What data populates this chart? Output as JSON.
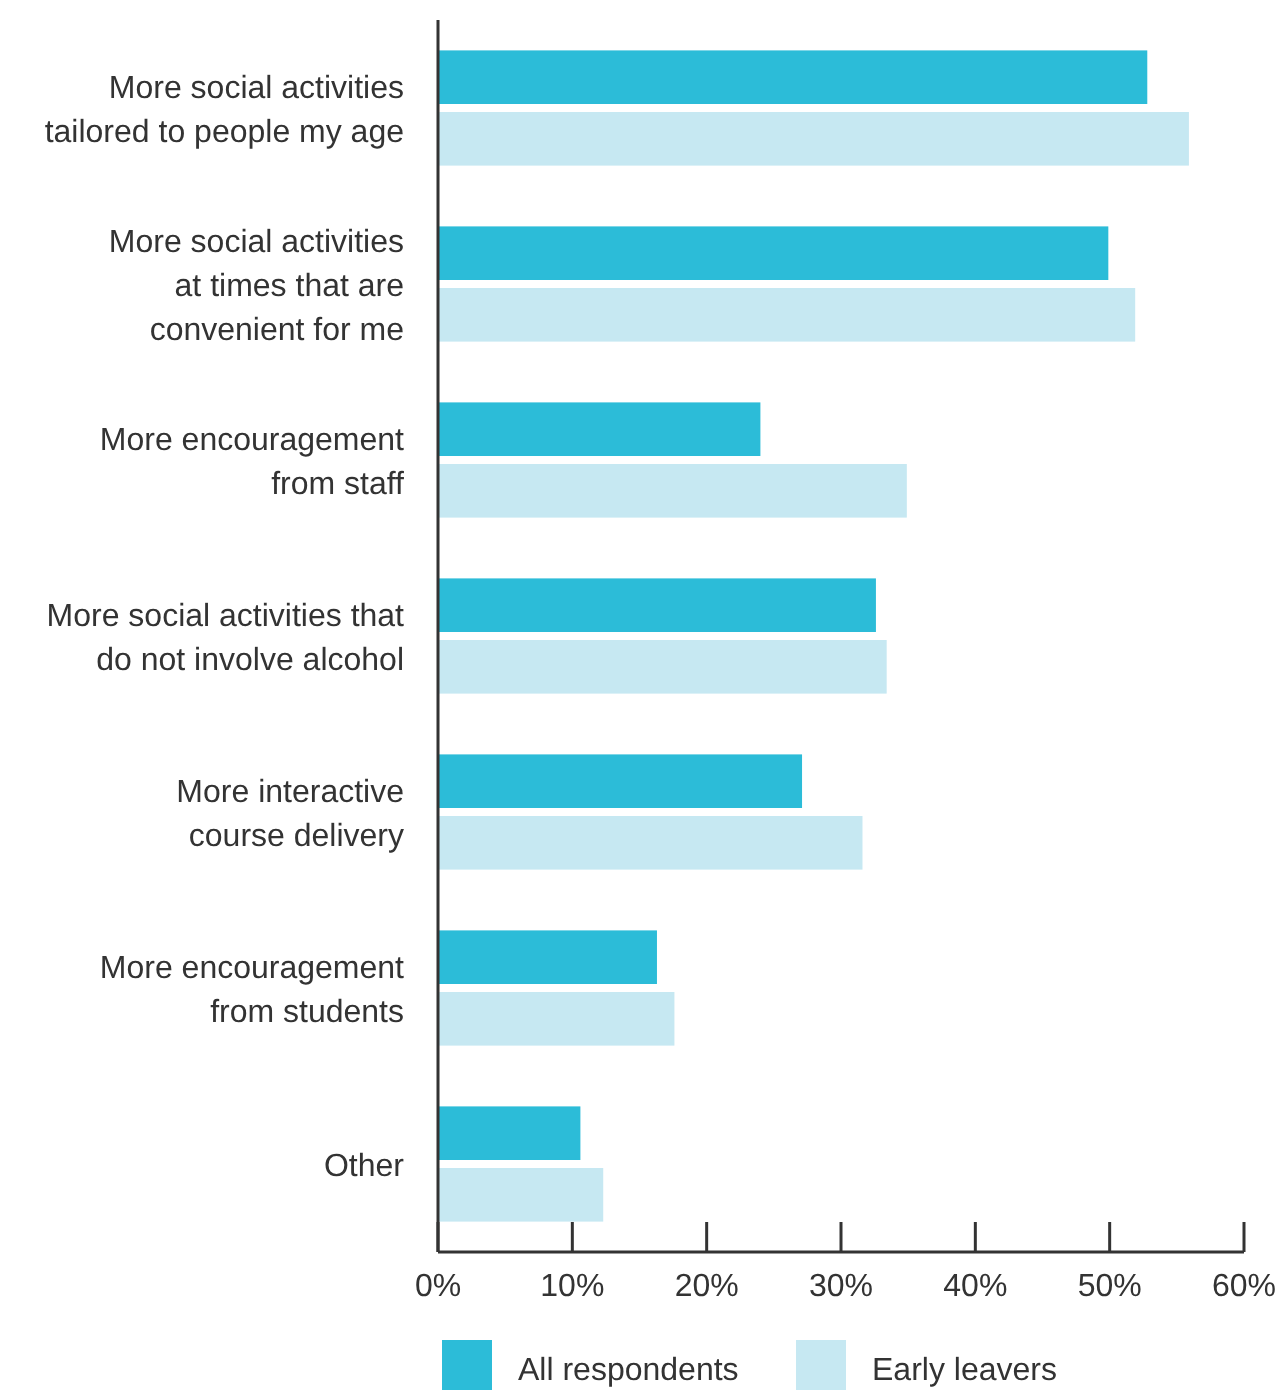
{
  "chart_data": {
    "type": "bar",
    "orientation": "horizontal",
    "categories": [
      "More social activities\ntailored to people my age",
      "More social activities\nat times that are\nconvenient for me",
      "More encouragement\nfrom staff",
      "More social activities that\ndo not involve alcohol",
      "More interactive\ncourse delivery",
      "More encouragement\nfrom students",
      "Other"
    ],
    "series": [
      {
        "name": "All respondents",
        "color": "#2cbcd8",
        "values": [
          52.8,
          49.9,
          24.0,
          32.6,
          27.1,
          16.3,
          10.6
        ]
      },
      {
        "name": "Early leavers",
        "color": "#c6e8f2",
        "values": [
          55.9,
          51.9,
          34.9,
          33.4,
          31.6,
          17.6,
          12.3
        ]
      }
    ],
    "xlim": [
      0,
      60
    ],
    "xticks": [
      {
        "value": 0,
        "label": "0%"
      },
      {
        "value": 10,
        "label": "10%"
      },
      {
        "value": 20,
        "label": "20%"
      },
      {
        "value": 30,
        "label": "30%"
      },
      {
        "value": 40,
        "label": "40%"
      },
      {
        "value": 50,
        "label": "50%"
      },
      {
        "value": 60,
        "label": "60%"
      }
    ],
    "grid": false,
    "legend": "bottom"
  }
}
